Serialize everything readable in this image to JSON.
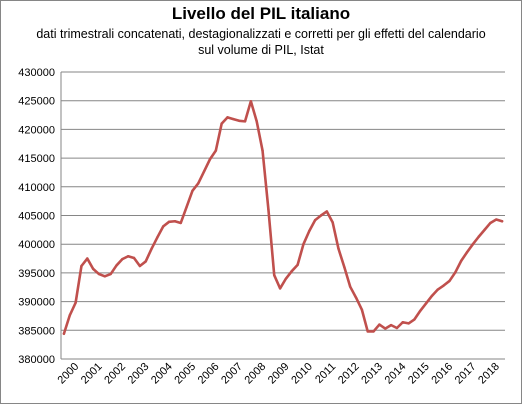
{
  "chart_data": {
    "type": "line",
    "title": "Livello del PIL italiano",
    "subtitle_line1": "dati trimestrali concatenati, destagionalizzati e corretti per gli effetti del calendario",
    "subtitle_line2": "sul volume di PIL, Istat",
    "xlabel": "",
    "ylabel": "",
    "ylim": [
      380000,
      430000
    ],
    "ytick_step": 5000,
    "y_ticks": [
      "380000",
      "385000",
      "390000",
      "395000",
      "400000",
      "405000",
      "410000",
      "415000",
      "420000",
      "425000",
      "430000"
    ],
    "x_ticks": [
      "2000",
      "2001",
      "2002",
      "2003",
      "2004",
      "2005",
      "2006",
      "2007",
      "2008",
      "2009",
      "2010",
      "2011",
      "2012",
      "2013",
      "2014",
      "2015",
      "2016",
      "2017",
      "2018"
    ],
    "grid": "horizontal",
    "line_color": "#c0504d",
    "series": [
      {
        "values": [
          384400,
          387600,
          389800,
          396200,
          397500,
          395700,
          394800,
          394400,
          394800,
          396300,
          397400,
          397900,
          397600,
          396200,
          397000,
          399200,
          401200,
          403100,
          403900,
          404000,
          403700,
          406500,
          409300,
          410600,
          412700,
          414800,
          416300,
          421000,
          422100,
          421800,
          421500,
          421400,
          424900,
          421400,
          416300,
          406100,
          394600,
          392300,
          394000,
          395300,
          396400,
          400000,
          402300,
          404200,
          405000,
          405700,
          403800,
          399200,
          396000,
          392600,
          390700,
          388600,
          384800,
          384800,
          386000,
          385300,
          385900,
          385400,
          386400,
          386200,
          386900,
          388400,
          389700,
          391000,
          392100,
          392800,
          393600,
          395100,
          397100,
          398600,
          400000,
          401300,
          402500,
          403700,
          404300,
          404000
        ]
      }
    ]
  }
}
